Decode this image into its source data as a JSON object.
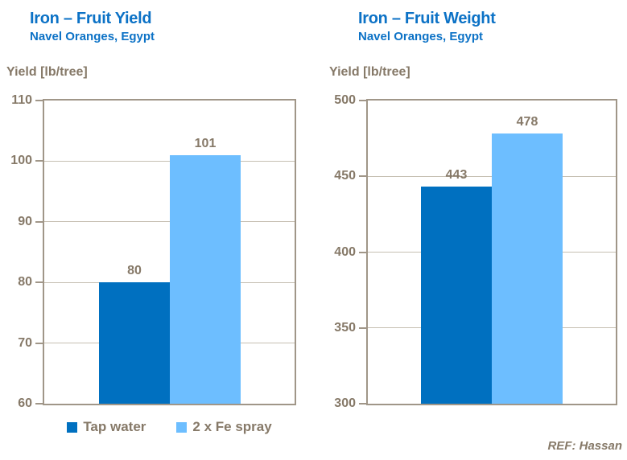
{
  "page": {
    "background": "#FFFFFF",
    "footer_ref": "REF: Hassan"
  },
  "colors": {
    "title_blue": "#0C72C6",
    "bar_dark_blue": "#0070C0",
    "bar_light_blue": "#6DBEFF",
    "text_brown": "#867968",
    "axis_border": "#A09688",
    "gridline": "#C6BFB2"
  },
  "legend": {
    "items": [
      {
        "label": "Tap water",
        "color": "#0070C0"
      },
      {
        "label": "2 x Fe spray",
        "color": "#6DBEFF"
      }
    ]
  },
  "chart_data": [
    {
      "type": "bar",
      "title": "Iron – Fruit Yield",
      "subtitle": "Navel Oranges, Egypt",
      "ylabel": "Yield [lb/tree]",
      "categories": [
        "Tap water",
        "2 x Fe spray"
      ],
      "values": [
        80,
        101
      ],
      "value_labels": [
        "80",
        "101"
      ],
      "bar_colors": [
        "#0070C0",
        "#6DBEFF"
      ],
      "ylim": [
        60,
        110
      ],
      "ytick_step": 10,
      "ytick_labels": [
        "110",
        "100",
        "90",
        "80",
        "70",
        "60"
      ],
      "grid": true,
      "legend_position": "bottom"
    },
    {
      "type": "bar",
      "title": "Iron – Fruit Weight",
      "subtitle": "Navel Oranges, Egypt",
      "ylabel": "Yield [lb/tree]",
      "categories": [
        "Tap water",
        "2 x Fe spray"
      ],
      "values": [
        443,
        478
      ],
      "value_labels": [
        "443",
        "478"
      ],
      "bar_colors": [
        "#0070C0",
        "#6DBEFF"
      ],
      "ylim": [
        300,
        500
      ],
      "ytick_step": 50,
      "ytick_labels": [
        "500",
        "450",
        "400",
        "350",
        "300"
      ],
      "grid": true,
      "legend_position": "none"
    }
  ]
}
